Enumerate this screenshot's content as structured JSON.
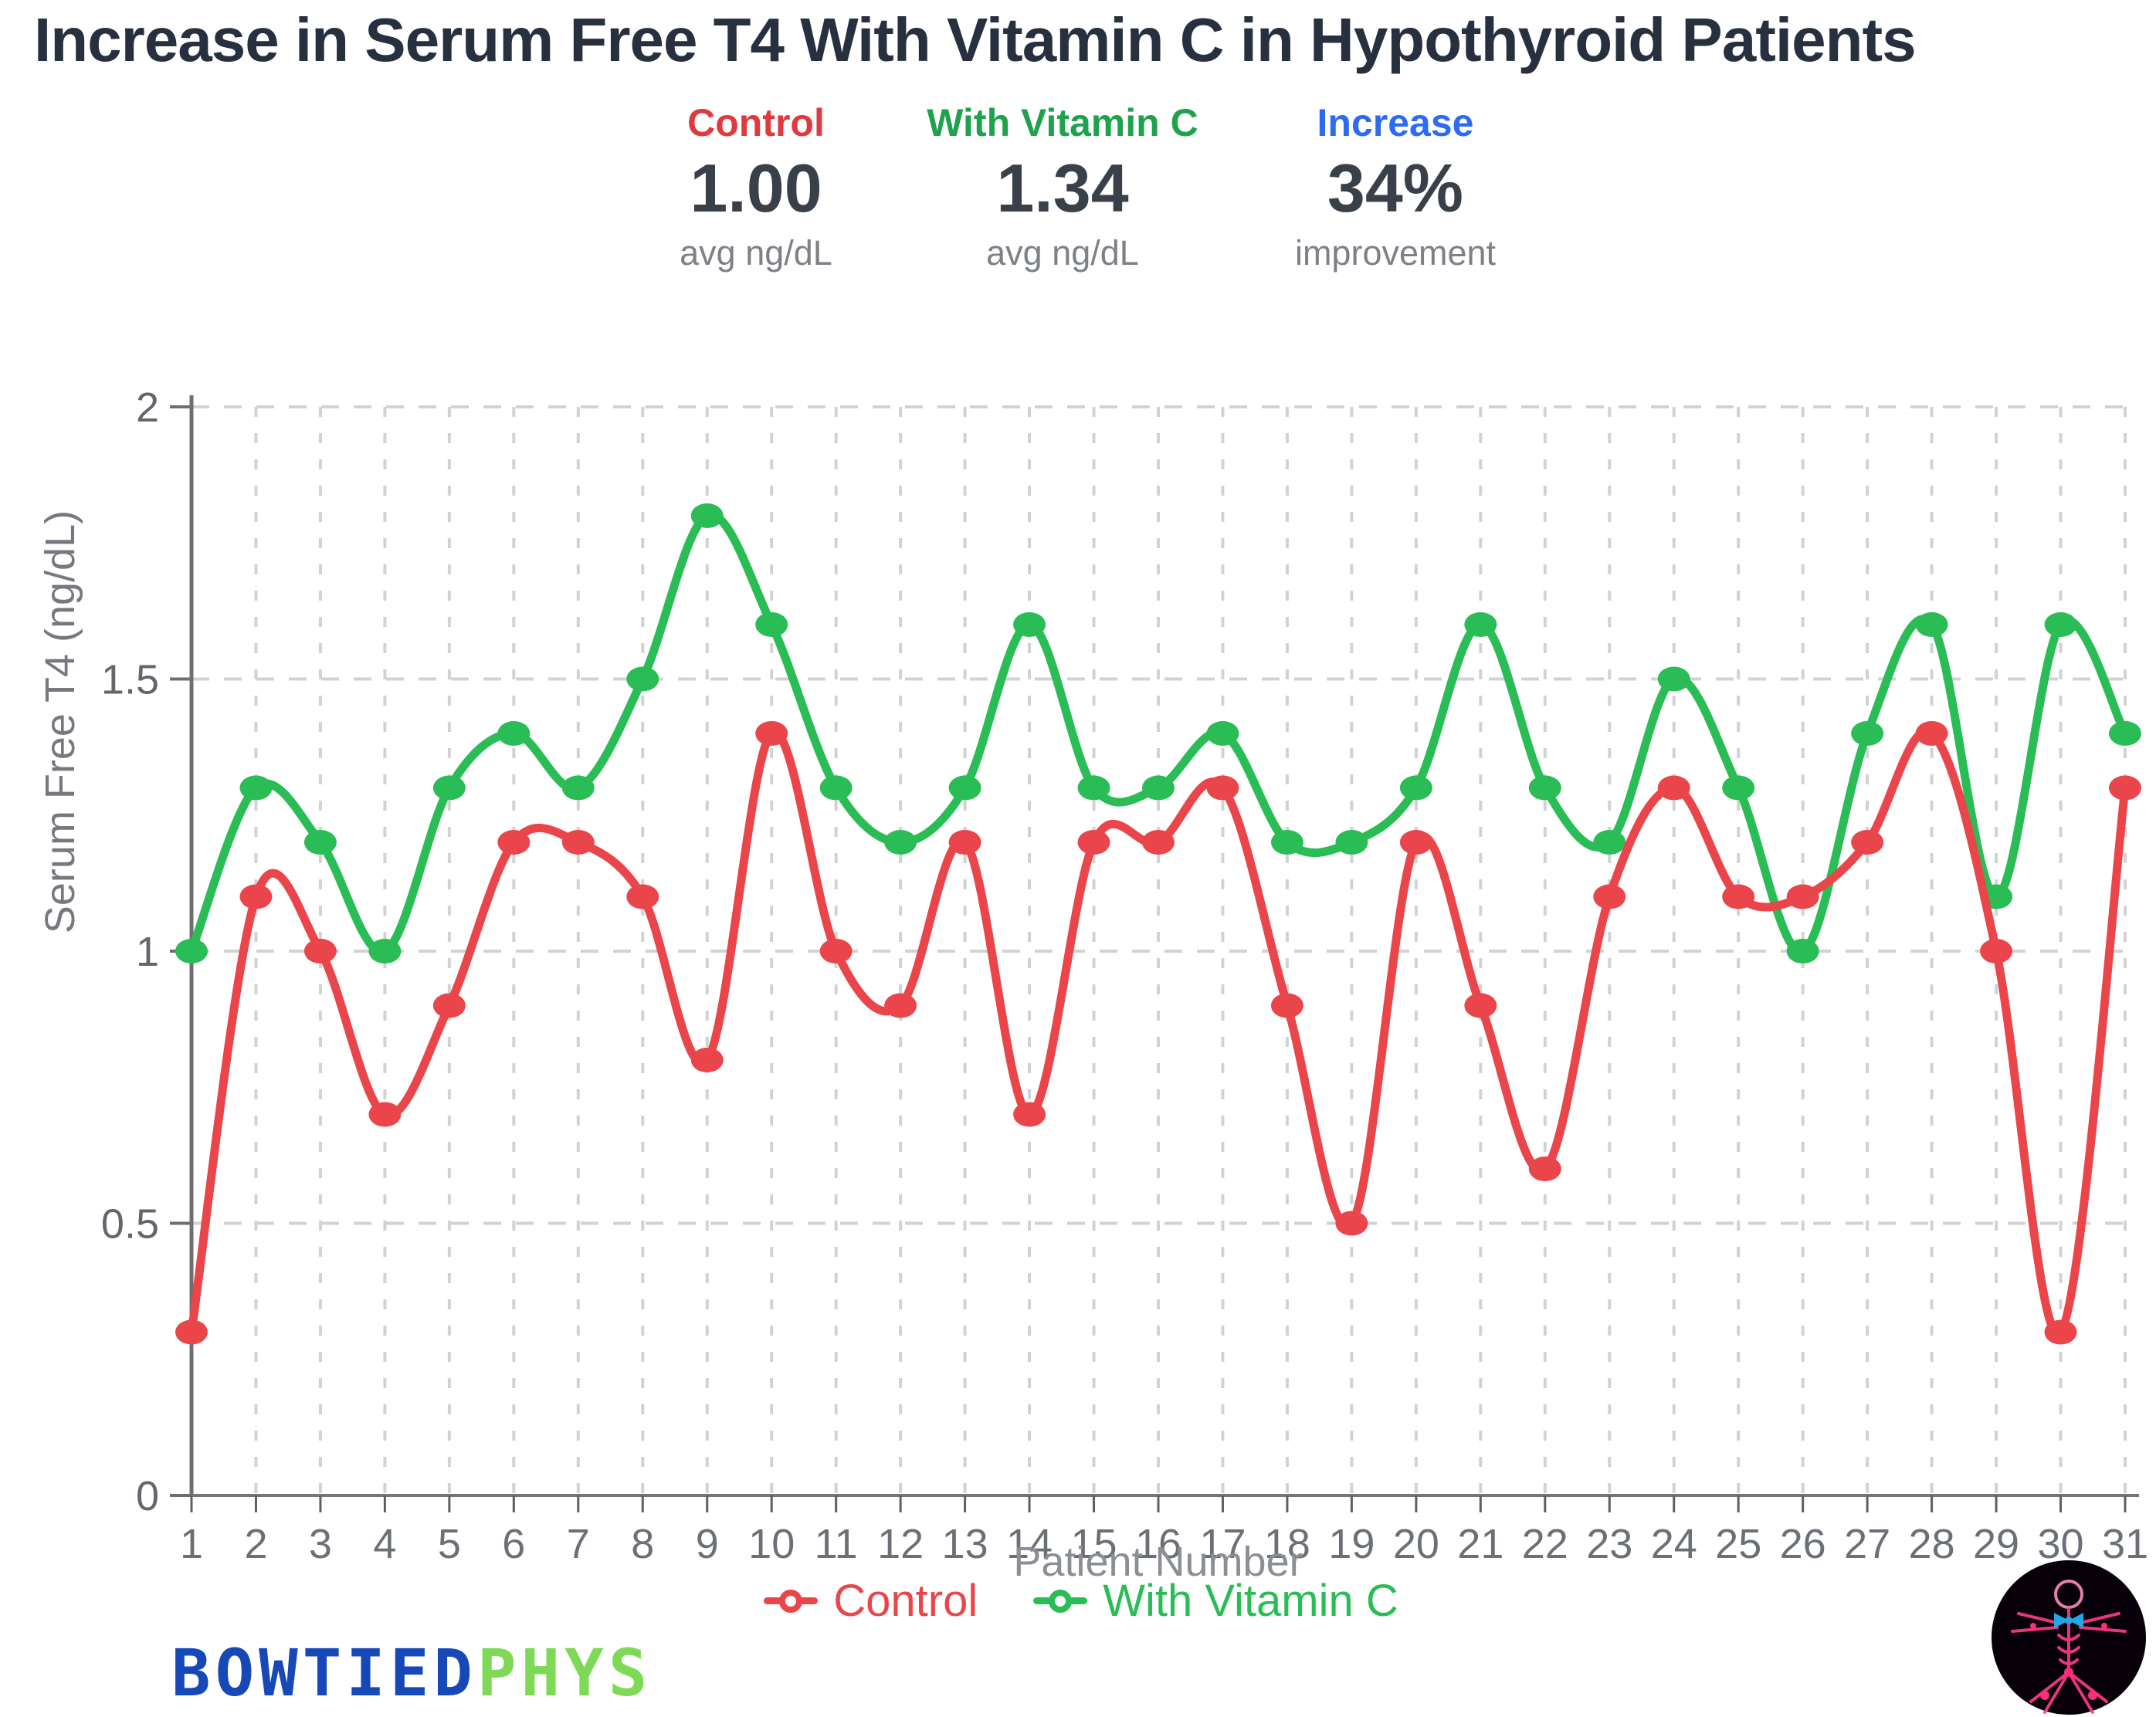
{
  "title": "Increase in Serum Free T4 With Vitamin C in Hypothyroid Patients",
  "stats": [
    {
      "label": "Control",
      "value": "1.00",
      "caption": "avg ng/dL",
      "color": "#e03a3f"
    },
    {
      "label": "With Vitamin C",
      "value": "1.34",
      "caption": "avg ng/dL",
      "color": "#1fa24c"
    },
    {
      "label": "Increase",
      "value": "34%",
      "caption": "improvement",
      "color": "#2e6bf0"
    }
  ],
  "chart_data": {
    "type": "line",
    "x": [
      1,
      2,
      3,
      4,
      5,
      6,
      7,
      8,
      9,
      10,
      11,
      12,
      13,
      14,
      15,
      16,
      17,
      18,
      19,
      20,
      21,
      22,
      23,
      24,
      25,
      26,
      27,
      28,
      29,
      30,
      31
    ],
    "series": [
      {
        "name": "With Vitamin C",
        "color": "#2abd55",
        "values": [
          1.0,
          1.3,
          1.2,
          1.0,
          1.3,
          1.4,
          1.3,
          1.5,
          1.8,
          1.6,
          1.3,
          1.2,
          1.3,
          1.6,
          1.3,
          1.3,
          1.4,
          1.2,
          1.2,
          1.3,
          1.6,
          1.3,
          1.2,
          1.5,
          1.3,
          1.0,
          1.4,
          1.6,
          1.1,
          1.6,
          1.4
        ]
      },
      {
        "name": "Control",
        "color": "#e9454a",
        "values": [
          0.3,
          1.1,
          1.0,
          0.7,
          0.9,
          1.2,
          1.2,
          1.1,
          0.8,
          1.4,
          1.0,
          0.9,
          1.2,
          0.7,
          1.2,
          1.2,
          1.3,
          0.9,
          0.5,
          1.2,
          0.9,
          0.6,
          1.1,
          1.3,
          1.1,
          1.1,
          1.2,
          1.4,
          1.0,
          0.3,
          1.3
        ]
      }
    ],
    "xlabel": "Patient Number",
    "ylabel": "Serum Free T4 (ng/dL)",
    "ylim": [
      0,
      2
    ],
    "yticks": [
      0,
      0.5,
      1,
      1.5,
      2
    ],
    "grid": true,
    "legend_position": "bottom",
    "legend_order": [
      "Control",
      "With Vitamin C"
    ]
  },
  "branding": {
    "wordmark_blue": "BOWTIED",
    "wordmark_green": "PHYS",
    "wordmark_blue_color": "#1648b8",
    "wordmark_green_color": "#7ed957",
    "badge": "vitruvian-figure-with-bowtie"
  }
}
